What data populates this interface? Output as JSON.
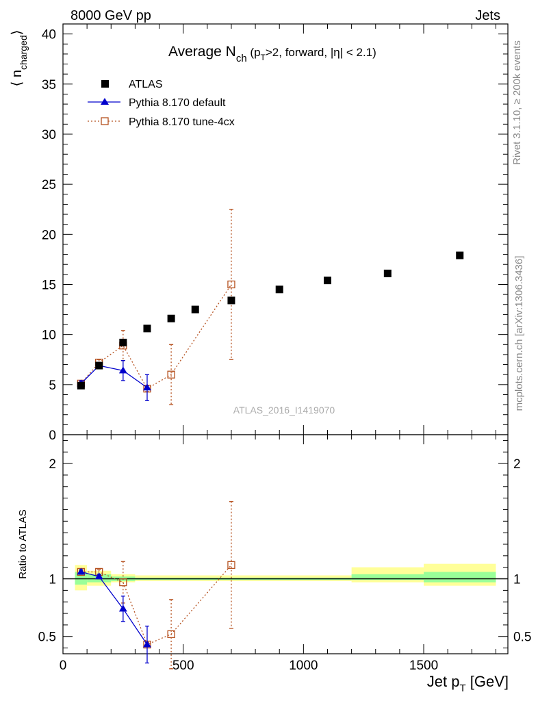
{
  "header": {
    "energy_label": "8000 GeV pp",
    "process_label": "Jets"
  },
  "side_labels": {
    "rivet": "Rivet 3.1.10, ≥ 200k events",
    "mcplots": "mcplots.cern.ch [arXiv:1306.3436]"
  },
  "watermark": "ATLAS_2016_I1419070",
  "title": {
    "main": "Average N",
    "sub": "ch",
    "rest1": " (p",
    "sub2": "T",
    "rest2": ">2, forward, |η| < 2.1)"
  },
  "ylabel_main": {
    "open": "⟨ n",
    "sub": "charged",
    "close": "⟩"
  },
  "ylabel_ratio": "Ratio to ATLAS",
  "xlabel": {
    "main": "Jet p",
    "sub": "T",
    "rest": " [GeV]"
  },
  "colors": {
    "atlas": "#000000",
    "default": "#0000cc",
    "tune": "#b5501e",
    "band_inner": "#99ff99",
    "band_outer": "#ffff99"
  },
  "chart_data": [
    {
      "type": "scatter",
      "panel": "main",
      "xlim": [
        0,
        1850
      ],
      "ylim": [
        0,
        41
      ],
      "y_ticks": [
        0,
        5,
        10,
        15,
        20,
        25,
        30,
        35,
        40
      ],
      "legend_position": "top-left",
      "series": [
        {
          "name": "ATLAS",
          "marker": "filled-square",
          "x": [
            75,
            150,
            250,
            350,
            450,
            550,
            700,
            900,
            1100,
            1350,
            1650
          ],
          "y": [
            4.9,
            6.9,
            9.2,
            10.6,
            11.6,
            12.5,
            13.4,
            14.5,
            15.4,
            16.1,
            17.9
          ]
        },
        {
          "name": "Pythia 8.170 default",
          "marker": "filled-triangle",
          "x": [
            75,
            150,
            250,
            350
          ],
          "y": [
            5.1,
            6.9,
            6.4,
            4.7
          ],
          "err": [
            0.3,
            0.3,
            1.0,
            1.3
          ]
        },
        {
          "name": "Pythia 8.170 tune-4cx",
          "marker": "open-square",
          "x": [
            75,
            150,
            250,
            350,
            450,
            700
          ],
          "y": [
            5.1,
            7.2,
            8.9,
            4.6,
            6.0,
            15.0
          ],
          "err": [
            0.2,
            0.3,
            1.5,
            0.3,
            3.0,
            7.5
          ]
        }
      ]
    },
    {
      "type": "scatter",
      "panel": "ratio",
      "xlim": [
        0,
        1850
      ],
      "ylim": [
        0.35,
        2.25
      ],
      "y_ticks": [
        0.5,
        1,
        2
      ],
      "x_ticks": [
        0,
        500,
        1000,
        1500
      ],
      "bands": [
        {
          "x0": 50,
          "x1": 100,
          "inner": [
            0.95,
            1.06
          ],
          "outer": [
            0.9,
            1.12
          ]
        },
        {
          "x0": 100,
          "x1": 200,
          "inner": [
            0.97,
            1.04
          ],
          "outer": [
            0.94,
            1.07
          ]
        },
        {
          "x0": 200,
          "x1": 300,
          "inner": [
            0.98,
            1.02
          ],
          "outer": [
            0.97,
            1.04
          ]
        },
        {
          "x0": 300,
          "x1": 1200,
          "inner": [
            0.99,
            1.01
          ],
          "outer": [
            0.98,
            1.03
          ]
        },
        {
          "x0": 1200,
          "x1": 1500,
          "inner": [
            0.99,
            1.04
          ],
          "outer": [
            0.97,
            1.1
          ]
        },
        {
          "x0": 1500,
          "x1": 1800,
          "inner": [
            0.97,
            1.06
          ],
          "outer": [
            0.94,
            1.13
          ]
        }
      ],
      "series": [
        {
          "name": "Pythia 8.170 default",
          "x": [
            75,
            150,
            250,
            350
          ],
          "y": [
            1.06,
            1.02,
            0.74,
            0.43
          ],
          "err": [
            0.02,
            0.02,
            0.11,
            0.16
          ]
        },
        {
          "name": "Pythia 8.170 tune-4cx",
          "x": [
            75,
            150,
            250,
            350,
            450,
            700
          ],
          "y": [
            1.06,
            1.06,
            0.97,
            0.43,
            0.52,
            1.12
          ],
          "err": [
            0.01,
            0.02,
            0.18,
            0.02,
            0.3,
            0.55
          ]
        }
      ]
    }
  ]
}
